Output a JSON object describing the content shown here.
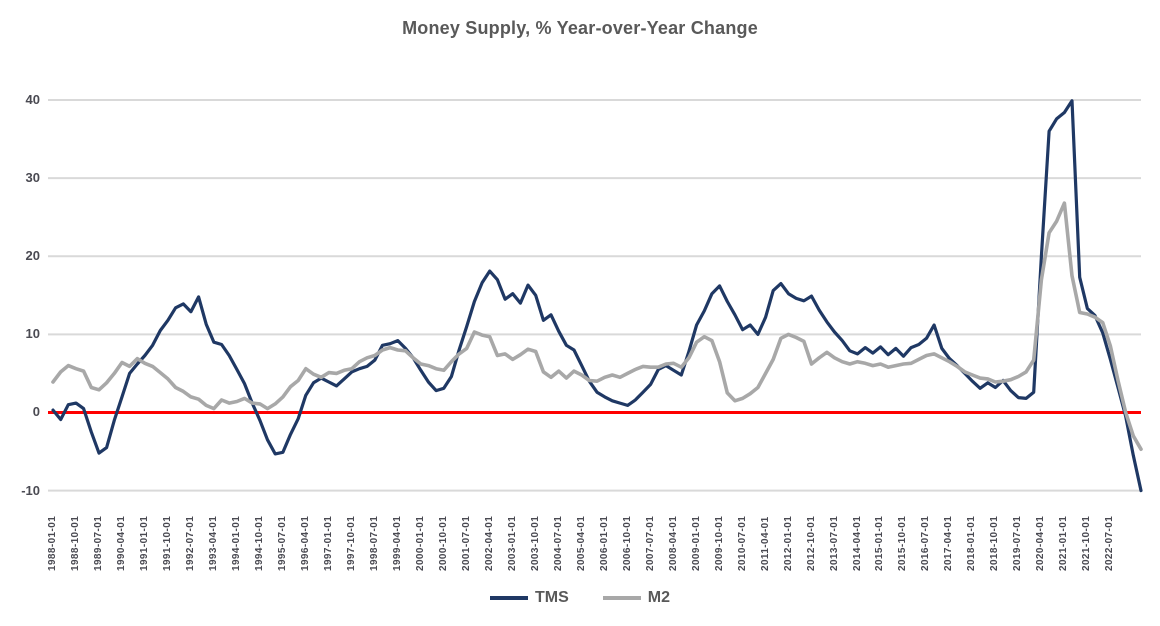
{
  "chart_data": {
    "type": "line",
    "title": "Money Supply, % Year-over-Year Change",
    "xlabel": "",
    "ylabel": "",
    "ylim": [
      -10,
      40
    ],
    "yticks": [
      40,
      30,
      20,
      10,
      0,
      -10
    ],
    "grid": true,
    "legend_position": "bottom",
    "x_start": "1988-01-01",
    "x_end": "2023-07-01",
    "x_interval_months": 3,
    "x_labels": [
      "1988-01-01",
      "1988-10-01",
      "1989-07-01",
      "1990-04-01",
      "1991-01-01",
      "1991-10-01",
      "1992-07-01",
      "1993-04-01",
      "1994-01-01",
      "1994-10-01",
      "1995-07-01",
      "1996-04-01",
      "1997-01-01",
      "1997-10-01",
      "1998-07-01",
      "1999-04-01",
      "2000-01-01",
      "2000-10-01",
      "2001-07-01",
      "2002-04-01",
      "2003-01-01",
      "2003-10-01",
      "2004-07-01",
      "2005-04-01",
      "2006-01-01",
      "2006-10-01",
      "2007-07-01",
      "2008-04-01",
      "2009-01-01",
      "2009-10-01",
      "2010-07-01",
      "2011-04-01",
      "2012-01-01",
      "2012-10-01",
      "2013-07-01",
      "2014-04-01",
      "2015-01-01",
      "2015-10-01",
      "2016-07-01",
      "2017-04-01",
      "2018-01-01",
      "2018-10-01",
      "2019-07-01",
      "2020-04-01",
      "2021-01-01",
      "2021-10-01",
      "2022-07-01"
    ],
    "zero_line": {
      "value": 0,
      "color": "#ff0000"
    },
    "colors": {
      "gridline": "#d9d9d9",
      "title_text": "#595959",
      "axis_text": "#4a4a52"
    },
    "series": [
      {
        "name": "TMS",
        "color": "#1f3864",
        "values": [
          0.3,
          -0.9,
          1.0,
          1.2,
          0.5,
          -2.5,
          -5.2,
          -4.5,
          -1.0,
          2.0,
          5.0,
          6.2,
          7.3,
          8.6,
          10.5,
          11.8,
          13.4,
          13.9,
          12.9,
          14.8,
          11.3,
          9.0,
          8.7,
          7.3,
          5.5,
          3.7,
          1.2,
          -1.0,
          -3.5,
          -5.3,
          -5.1,
          -2.8,
          -0.8,
          2.2,
          3.8,
          4.4,
          3.9,
          3.4,
          4.3,
          5.2,
          5.6,
          5.9,
          6.7,
          8.6,
          8.8,
          9.2,
          8.2,
          7.0,
          5.4,
          3.9,
          2.8,
          3.1,
          4.6,
          8.0,
          11.0,
          14.2,
          16.6,
          18.1,
          17.0,
          14.5,
          15.2,
          14.0,
          16.3,
          15.0,
          11.8,
          12.5,
          10.4,
          8.6,
          8.0,
          6.0,
          4.0,
          2.6,
          2.0,
          1.5,
          1.2,
          0.9,
          1.6,
          2.6,
          3.6,
          5.5,
          6.0,
          5.4,
          4.8,
          7.8,
          11.2,
          13.0,
          15.2,
          16.2,
          14.2,
          12.5,
          10.6,
          11.2,
          10.0,
          12.2,
          15.6,
          16.5,
          15.2,
          14.6,
          14.3,
          14.9,
          13.1,
          11.6,
          10.3,
          9.2,
          7.9,
          7.5,
          8.3,
          7.6,
          8.4,
          7.4,
          8.2,
          7.2,
          8.3,
          8.7,
          9.5,
          11.2,
          8.2,
          6.9,
          6.0,
          5.0,
          4.0,
          3.1,
          3.8,
          3.2,
          4.1,
          2.8,
          1.9,
          1.8,
          2.6,
          20.0,
          36.0,
          37.6,
          38.4,
          39.9,
          17.3,
          13.3,
          12.4,
          10.2,
          6.8,
          3.2,
          -0.5,
          -5.5,
          -10.0
        ]
      },
      {
        "name": "M2",
        "color": "#a8a8a8",
        "values": [
          3.9,
          5.2,
          6.0,
          5.6,
          5.3,
          3.2,
          2.9,
          3.8,
          5.0,
          6.4,
          5.9,
          6.9,
          6.3,
          5.9,
          5.1,
          4.3,
          3.2,
          2.7,
          2.0,
          1.7,
          0.9,
          0.5,
          1.6,
          1.2,
          1.4,
          1.8,
          1.2,
          1.1,
          0.5,
          1.1,
          2.0,
          3.3,
          4.1,
          5.6,
          4.9,
          4.5,
          5.1,
          5.0,
          5.4,
          5.6,
          6.5,
          7.0,
          7.3,
          8.0,
          8.3,
          8.0,
          7.9,
          7.0,
          6.2,
          6.0,
          5.6,
          5.4,
          6.5,
          7.5,
          8.2,
          10.3,
          9.9,
          9.7,
          7.3,
          7.5,
          6.8,
          7.4,
          8.1,
          7.8,
          5.2,
          4.5,
          5.3,
          4.4,
          5.3,
          4.8,
          4.1,
          4.0,
          4.5,
          4.8,
          4.5,
          5.0,
          5.5,
          5.9,
          5.8,
          5.8,
          6.2,
          6.3,
          5.8,
          7.0,
          9.0,
          9.7,
          9.2,
          6.5,
          2.5,
          1.5,
          1.8,
          2.4,
          3.2,
          5.0,
          6.8,
          9.5,
          10.0,
          9.6,
          9.1,
          6.2,
          7.0,
          7.7,
          7.0,
          6.5,
          6.2,
          6.5,
          6.3,
          6.0,
          6.2,
          5.8,
          6.0,
          6.2,
          6.3,
          6.8,
          7.3,
          7.5,
          7.0,
          6.5,
          5.9,
          5.2,
          4.8,
          4.4,
          4.3,
          3.9,
          4.0,
          4.2,
          4.6,
          5.2,
          6.7,
          17.0,
          23.0,
          24.5,
          26.8,
          17.5,
          12.8,
          12.6,
          12.2,
          11.5,
          8.5,
          4.1,
          0.0,
          -3.0,
          -4.7
        ]
      }
    ]
  }
}
